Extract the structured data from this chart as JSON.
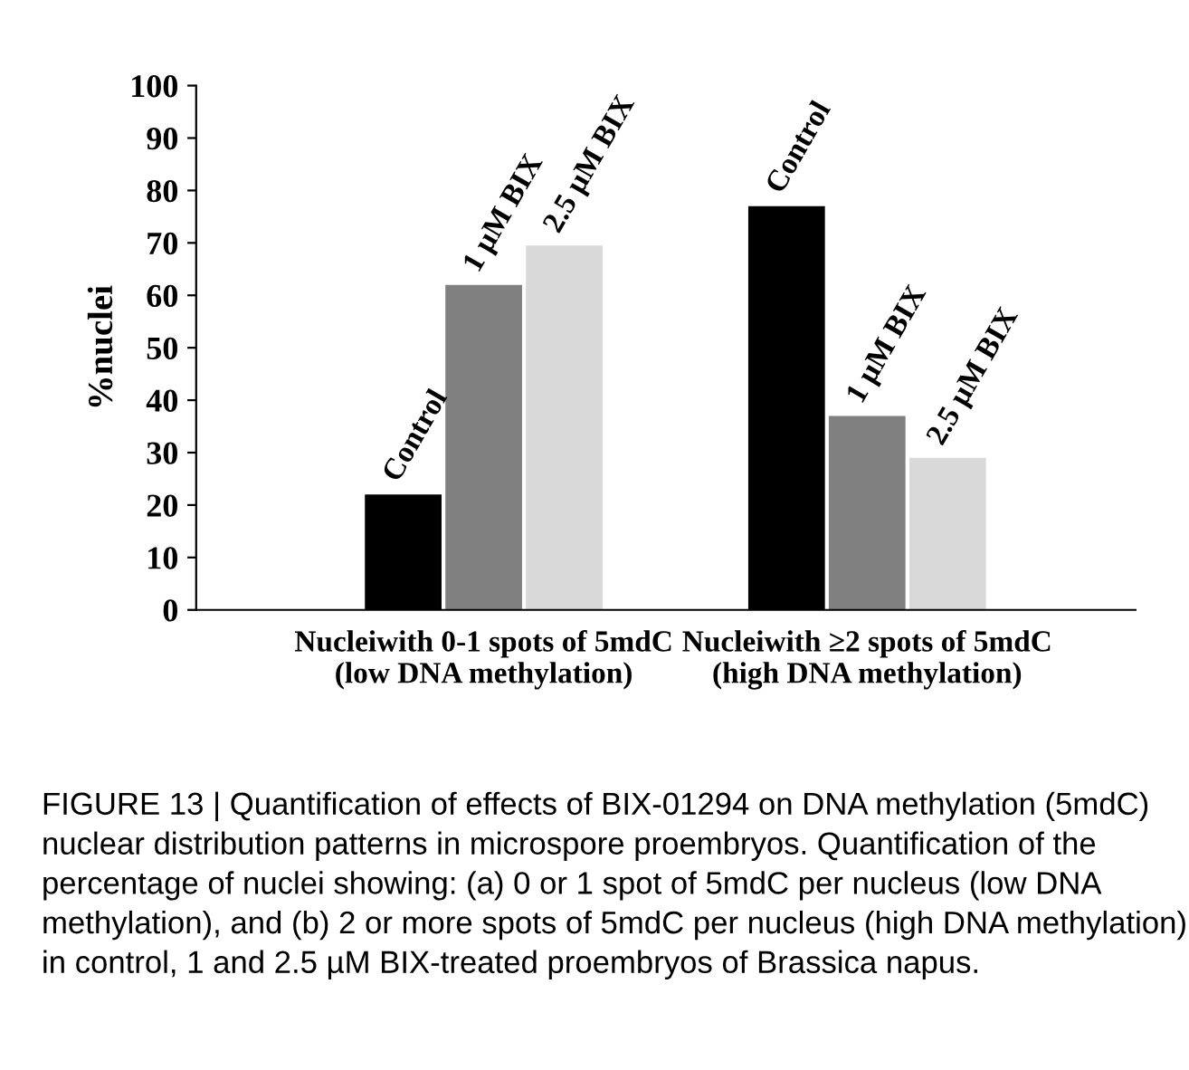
{
  "chart_data": {
    "type": "bar",
    "categories": [
      "Nucleiwith 0-1 spots of 5mdC\n(low DNA methylation)",
      "Nucleiwith ≥2 spots of 5mdC\n(high DNA methylation)"
    ],
    "series": [
      {
        "name": "Control",
        "color": "#000000",
        "values": [
          22,
          77
        ]
      },
      {
        "name": "1 µM BIX",
        "color": "#808080",
        "values": [
          62,
          37
        ]
      },
      {
        "name": "2.5 µM BIX",
        "color": "#d9d9d9",
        "values": [
          69.5,
          29
        ]
      }
    ],
    "ylabel": "%nuclei",
    "ylim": [
      0,
      100
    ],
    "yticks": [
      0,
      10,
      20,
      30,
      40,
      50,
      60,
      70,
      80,
      90,
      100
    ],
    "grid": false,
    "legend": false,
    "annotations": [
      "FIGURE 13 | Quantification of effects of BIX-01294 on DNA methylation (5mdC) nuclear distribution patterns in microspore proembryos. Quantification of the percentage of nuclei showing: (a) 0 or 1 spot of 5mdC per nucleus (low DNA methylation), and (b) 2 or more spots of 5mdC per nucleus (high DNA methylation) in control, 1 and 2.5 µM BIX-treated proembryos of Brassica napus."
    ]
  }
}
